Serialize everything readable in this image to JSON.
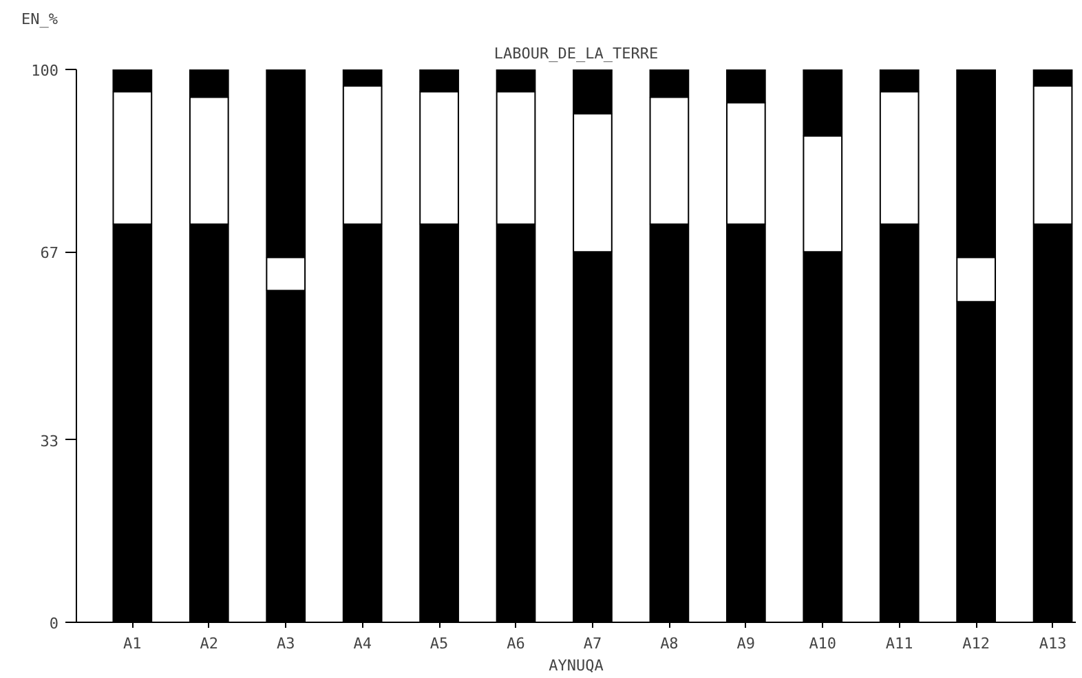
{
  "chart_data": {
    "type": "bar",
    "stacked": true,
    "title": "LABOUR_DE_LA_TERRE",
    "ylabel": "EN_%",
    "xlabel": "AYNUQA",
    "categories": [
      "A1",
      "A2",
      "A3",
      "A4",
      "A5",
      "A6",
      "A7",
      "A8",
      "A9",
      "A10",
      "A11",
      "A12",
      "A13"
    ],
    "series": [
      {
        "color": "#000000",
        "values": [
          72,
          72,
          60,
          72,
          72,
          72,
          67,
          72,
          72,
          67,
          72,
          58,
          72
        ]
      },
      {
        "color": "#ffffff",
        "values": [
          24,
          23,
          6,
          25,
          24,
          24,
          25,
          23,
          22,
          21,
          24,
          8,
          25
        ]
      },
      {
        "color": "#000000",
        "values": [
          4,
          5,
          34,
          3,
          4,
          4,
          8,
          5,
          6,
          12,
          4,
          34,
          3
        ]
      }
    ],
    "ylim": [
      0,
      100
    ],
    "yticks": [
      0,
      33,
      67,
      100
    ],
    "grid": false
  }
}
